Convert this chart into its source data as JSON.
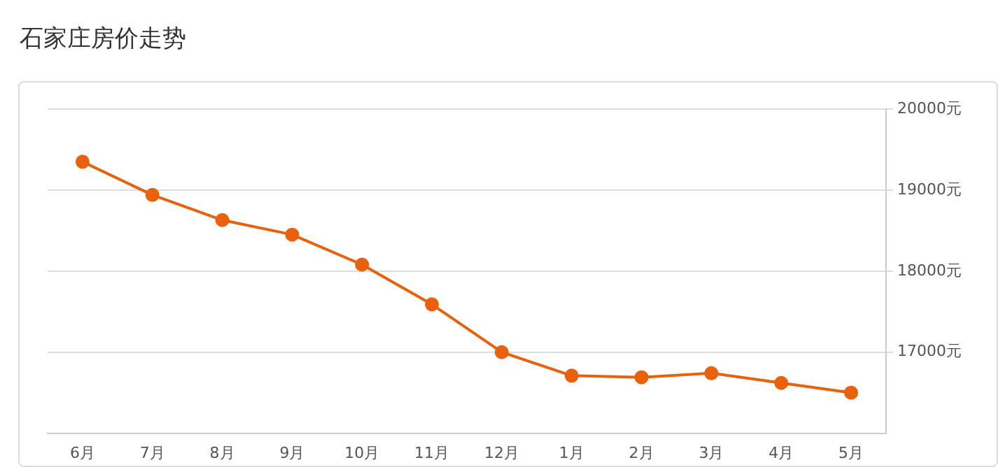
{
  "chart_data": {
    "type": "line",
    "title": "石家庄房价走势",
    "categories": [
      "6月",
      "7月",
      "8月",
      "9月",
      "10月",
      "11月",
      "12月",
      "1月",
      "2月",
      "3月",
      "4月",
      "5月"
    ],
    "series": [
      {
        "color": "#e8620e",
        "values": [
          19350,
          18940,
          18630,
          18450,
          18080,
          17590,
          17000,
          16710,
          16690,
          16740,
          16620,
          16500
        ]
      }
    ],
    "ylim": [
      16000,
      20000
    ],
    "yticks": [
      {
        "value": 17000,
        "label": "17000元"
      },
      {
        "value": 18000,
        "label": "18000元"
      },
      {
        "value": 19000,
        "label": "19000元"
      },
      {
        "value": 20000,
        "label": "20000元"
      }
    ],
    "grid": "y",
    "marker": "circle",
    "line_style": "solid",
    "legend": false
  }
}
